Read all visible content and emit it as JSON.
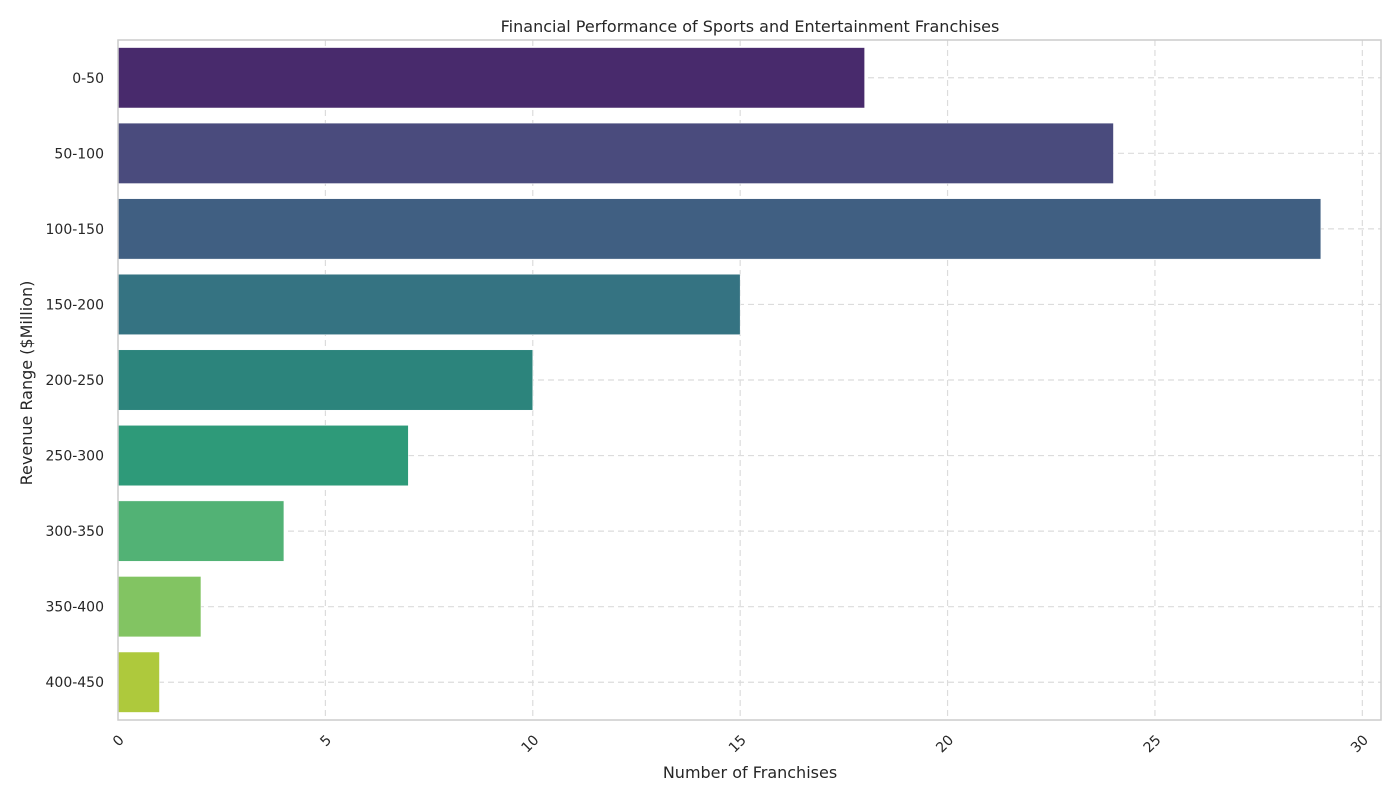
{
  "chart_data": {
    "type": "bar",
    "orientation": "horizontal",
    "title": "Financial Performance of Sports and Entertainment Franchises",
    "xlabel": "Number of Franchises",
    "ylabel": "Revenue Range ($Million)",
    "categories": [
      "0-50",
      "50-100",
      "100-150",
      "150-200",
      "200-250",
      "250-300",
      "300-350",
      "350-400",
      "400-450"
    ],
    "values": [
      18,
      24,
      29,
      15,
      10,
      7,
      4,
      2,
      1
    ],
    "xlim": [
      0,
      30.45
    ],
    "xticks": [
      0,
      5,
      10,
      15,
      20,
      25,
      30
    ],
    "xtick_rotation": 45,
    "grid": true,
    "grid_style": "dashed",
    "colors": [
      "#482a6c",
      "#4a4b7d",
      "#405f82",
      "#357382",
      "#2c847c",
      "#2e9a79",
      "#52b275",
      "#82c462",
      "#aec93c"
    ]
  }
}
